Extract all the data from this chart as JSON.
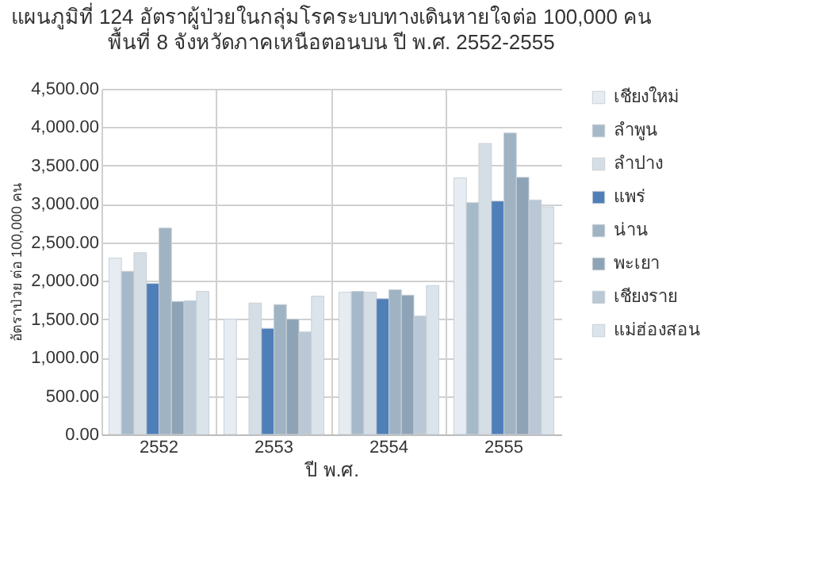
{
  "chart_data": {
    "type": "bar",
    "title": "แผนภูมิที่ 124  อัตราผู้ป่วยในกลุ่มโรคระบบทางเดินหายใจต่อ 100,000 คน",
    "subtitle": "พื้นที่ 8 จังหวัดภาคเหนือตอนบน  ปี พ.ศ. 2552-2555",
    "xlabel": "ปี พ.ศ.",
    "ylabel": "อัตราป่วย ต่อ 100,000 คน",
    "categories": [
      "2552",
      "2553",
      "2554",
      "2555"
    ],
    "series": [
      {
        "name": "เชียงใหม่",
        "color": "#e6ecf2",
        "values": [
          2295,
          1500,
          1850,
          3340
        ]
      },
      {
        "name": "ลำพูน",
        "color": "#a6b9c8",
        "values": [
          2124,
          null,
          1862,
          3017
        ]
      },
      {
        "name": "ลำปาง",
        "color": "#d6dee5",
        "values": [
          2365,
          1711,
          1850,
          3788
        ]
      },
      {
        "name": "แพร่",
        "color": "#4f7fb8",
        "values": [
          1965,
          1381,
          1767,
          3038
        ]
      },
      {
        "name": "น่าน",
        "color": "#9fb3c3",
        "values": [
          2687,
          1691,
          1883,
          3924
        ]
      },
      {
        "name": "พะเยา",
        "color": "#8ea3b5",
        "values": [
          1732,
          1500,
          1814,
          3347
        ]
      },
      {
        "name": "เชียงราย",
        "color": "#b9c8d4",
        "values": [
          1740,
          1334,
          1540,
          3052
        ]
      },
      {
        "name": "แม่ฮ่องสอน",
        "color": "#dce4eb",
        "values": [
          1862,
          1800,
          1938,
          2962
        ]
      }
    ],
    "ylim": [
      0,
      4500
    ],
    "yticks": [
      {
        "value": 0,
        "label": "0.00"
      },
      {
        "value": 500,
        "label": "500.00"
      },
      {
        "value": 1000,
        "label": "1,000.00"
      },
      {
        "value": 1500,
        "label": "1,500.00"
      },
      {
        "value": 2000,
        "label": "2,000.00"
      },
      {
        "value": 2500,
        "label": "2,500.00"
      },
      {
        "value": 3000,
        "label": "3,000.00"
      },
      {
        "value": 3500,
        "label": "3,500.00"
      },
      {
        "value": 4000,
        "label": "4,000.00"
      },
      {
        "value": 4500,
        "label": "4,500.00"
      }
    ],
    "grid": true,
    "legend": "right"
  }
}
